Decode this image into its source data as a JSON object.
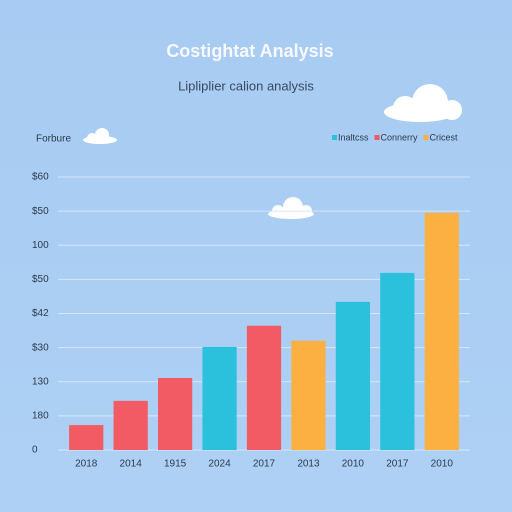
{
  "chart_data": {
    "type": "bar",
    "title": "Costightat Analysis",
    "subtitle": "Lipliplier calion analysis",
    "axis_label": "Forbure",
    "categories": [
      "2018",
      "2014",
      "1915",
      "2024",
      "2017",
      "2013",
      "2010",
      "2017",
      "2010"
    ],
    "series": [
      {
        "name": "Inaltcss",
        "color": "#2bc0db",
        "values": [
          null,
          null,
          null,
          3.02,
          null,
          null,
          4.34,
          5.19,
          null
        ]
      },
      {
        "name": "Connerry",
        "color": "#f25a64",
        "values": [
          0.73,
          1.44,
          2.11,
          null,
          3.64,
          null,
          null,
          null,
          null
        ]
      },
      {
        "name": "Cricest",
        "color": "#fbb041",
        "values": [
          null,
          null,
          null,
          null,
          null,
          3.2,
          null,
          null,
          6.95
        ]
      }
    ],
    "ylim": [
      0,
      8
    ],
    "yticks": [
      0,
      {
        "value": 1,
        "label": "180"
      },
      {
        "value": 2,
        "label": "130"
      },
      {
        "value": 3,
        "label": "$30"
      },
      {
        "value": 4,
        "label": "$42"
      },
      {
        "value": 5,
        "label": "$50"
      },
      {
        "value": 6,
        "label": "100"
      },
      {
        "value": 7,
        "label": "$50"
      },
      {
        "value": 8,
        "label": "$60"
      }
    ],
    "grid": true,
    "legend": "top-right"
  }
}
